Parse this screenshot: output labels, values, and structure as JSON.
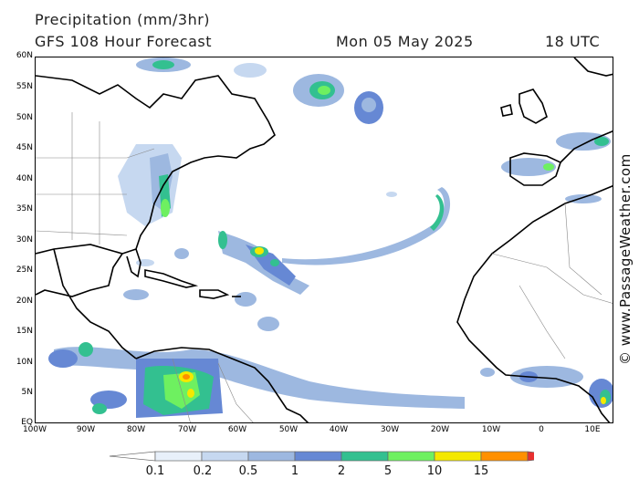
{
  "header": {
    "title": "Precipitation (mm/3hr)",
    "model_line": "GFS 108 Hour Forecast",
    "date": "Mon 05 May 2025",
    "time": "18 UTC"
  },
  "watermark": "© www.PassageWeather.com",
  "map": {
    "lat_labels": [
      "60N",
      "55N",
      "50N",
      "45N",
      "40N",
      "35N",
      "30N",
      "25N",
      "20N",
      "15N",
      "10N",
      "5N",
      "EQ"
    ],
    "lon_labels": [
      "100W",
      "90W",
      "80W",
      "70W",
      "60W",
      "50W",
      "40W",
      "30W",
      "20W",
      "10W",
      "0",
      "10E"
    ],
    "land_color": "#ffffff",
    "coast_color": "#000000",
    "border_color": "#888888"
  },
  "colorbar": {
    "labels": [
      "0.1",
      "0.2",
      "0.5",
      "1",
      "2",
      "5",
      "10",
      "15"
    ],
    "colors": [
      "#e8f0fa",
      "#c6d8f0",
      "#9db8e0",
      "#6688d4",
      "#33c090",
      "#6ef060",
      "#f4e800",
      "#ff9000",
      "#e83030"
    ]
  }
}
